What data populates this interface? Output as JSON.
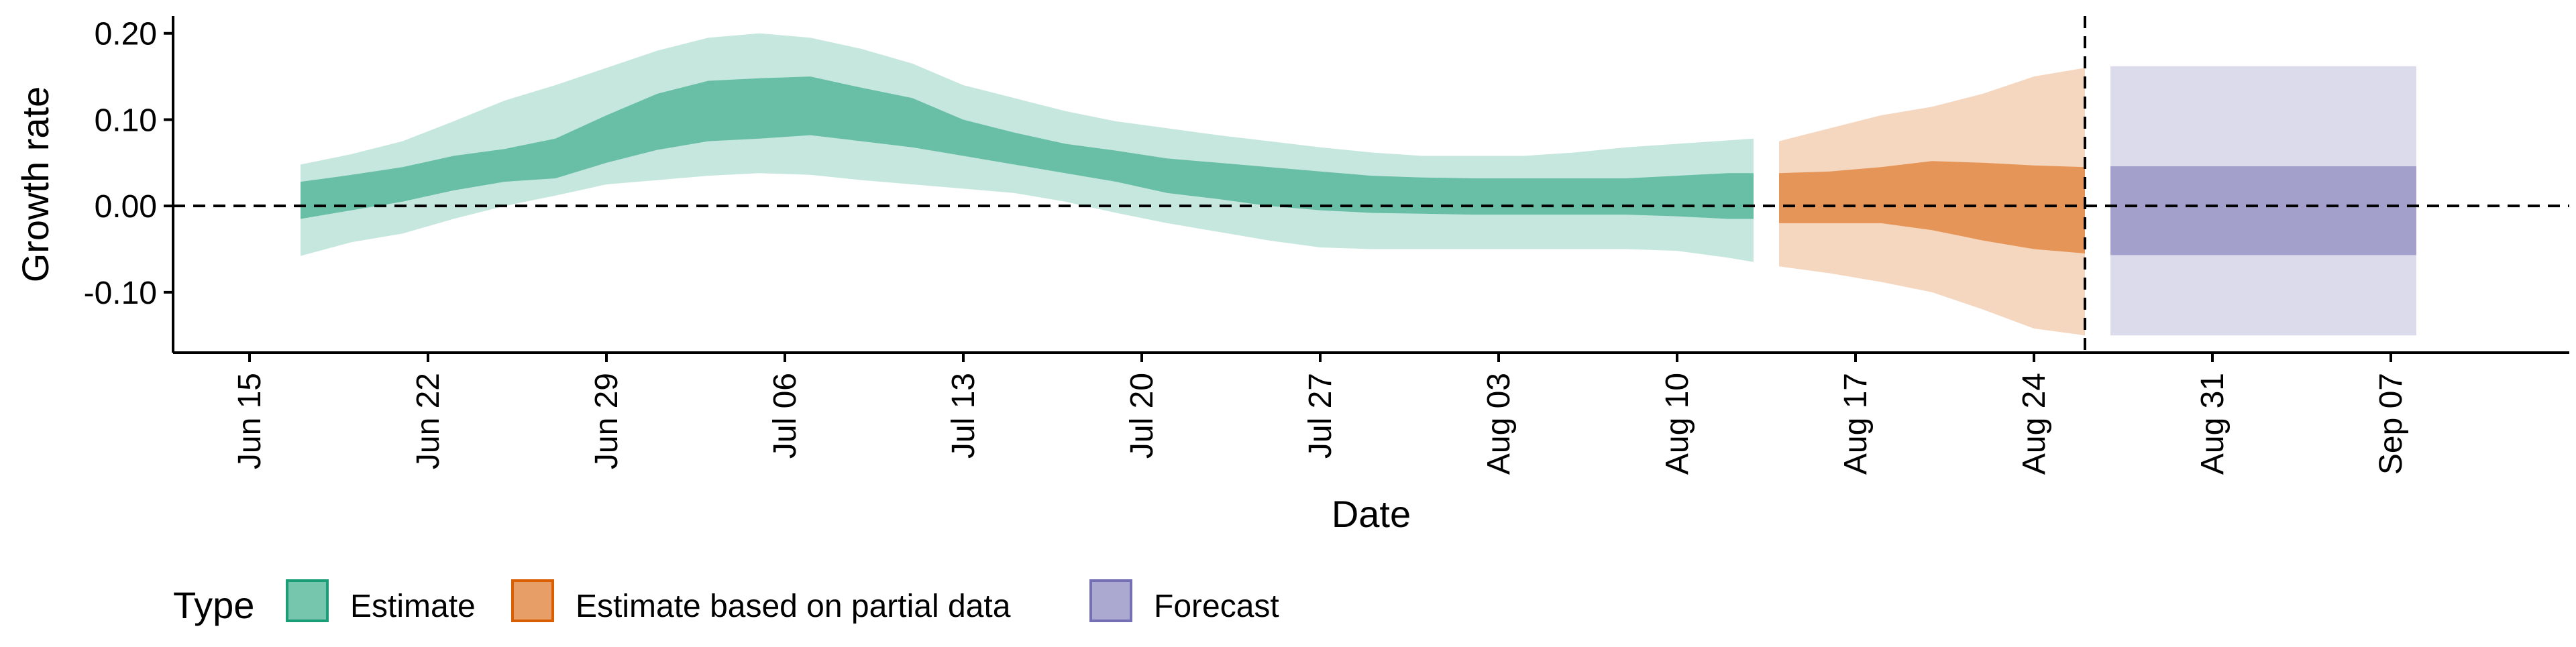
{
  "chart_data": {
    "type": "area",
    "xlabel": "Date",
    "ylabel": "Growth rate",
    "x_axis": {
      "type": "date",
      "range": [
        "2020-06-12",
        "2020-09-14"
      ],
      "ticks": [
        {
          "date": "2020-06-15",
          "label": "Jun 15"
        },
        {
          "date": "2020-06-22",
          "label": "Jun 22"
        },
        {
          "date": "2020-06-29",
          "label": "Jun 29"
        },
        {
          "date": "2020-07-06",
          "label": "Jul 06"
        },
        {
          "date": "2020-07-13",
          "label": "Jul 13"
        },
        {
          "date": "2020-07-20",
          "label": "Jul 20"
        },
        {
          "date": "2020-07-27",
          "label": "Jul 27"
        },
        {
          "date": "2020-08-03",
          "label": "Aug 03"
        },
        {
          "date": "2020-08-10",
          "label": "Aug 10"
        },
        {
          "date": "2020-08-17",
          "label": "Aug 17"
        },
        {
          "date": "2020-08-24",
          "label": "Aug 24"
        },
        {
          "date": "2020-08-31",
          "label": "Aug 31"
        },
        {
          "date": "2020-09-07",
          "label": "Sep 07"
        }
      ]
    },
    "y_axis": {
      "range": [
        -0.17,
        0.22
      ],
      "ticks": [
        {
          "value": 0.2,
          "label": "0.20"
        },
        {
          "value": 0.1,
          "label": "0.10"
        },
        {
          "value": 0.0,
          "label": "0.00"
        },
        {
          "value": -0.1,
          "label": "-0.10"
        }
      ]
    },
    "reference_lines": {
      "horizontal_y": 0.0,
      "vertical_x": "2020-08-26"
    },
    "grid": false,
    "legend": {
      "title": "Type",
      "position": "bottom-left"
    },
    "series": [
      {
        "name": "Estimate",
        "color": "#1b9e77",
        "points": [
          {
            "x": "2020-06-17",
            "l90": -0.058,
            "l50": -0.015,
            "u50": 0.028,
            "u90": 0.048
          },
          {
            "x": "2020-06-19",
            "l90": -0.042,
            "l50": -0.005,
            "u50": 0.036,
            "u90": 0.06
          },
          {
            "x": "2020-06-21",
            "l90": -0.032,
            "l50": 0.005,
            "u50": 0.045,
            "u90": 0.075
          },
          {
            "x": "2020-06-23",
            "l90": -0.015,
            "l50": 0.018,
            "u50": 0.058,
            "u90": 0.098
          },
          {
            "x": "2020-06-25",
            "l90": 0.0,
            "l50": 0.028,
            "u50": 0.066,
            "u90": 0.122
          },
          {
            "x": "2020-06-27",
            "l90": 0.012,
            "l50": 0.032,
            "u50": 0.078,
            "u90": 0.14
          },
          {
            "x": "2020-06-29",
            "l90": 0.025,
            "l50": 0.05,
            "u50": 0.105,
            "u90": 0.16
          },
          {
            "x": "2020-07-01",
            "l90": 0.03,
            "l50": 0.065,
            "u50": 0.13,
            "u90": 0.18
          },
          {
            "x": "2020-07-03",
            "l90": 0.035,
            "l50": 0.075,
            "u50": 0.145,
            "u90": 0.195
          },
          {
            "x": "2020-07-05",
            "l90": 0.038,
            "l50": 0.078,
            "u50": 0.148,
            "u90": 0.2
          },
          {
            "x": "2020-07-07",
            "l90": 0.036,
            "l50": 0.082,
            "u50": 0.15,
            "u90": 0.195
          },
          {
            "x": "2020-07-09",
            "l90": 0.03,
            "l50": 0.075,
            "u50": 0.137,
            "u90": 0.182
          },
          {
            "x": "2020-07-11",
            "l90": 0.025,
            "l50": 0.068,
            "u50": 0.125,
            "u90": 0.165
          },
          {
            "x": "2020-07-13",
            "l90": 0.02,
            "l50": 0.058,
            "u50": 0.1,
            "u90": 0.14
          },
          {
            "x": "2020-07-15",
            "l90": 0.015,
            "l50": 0.048,
            "u50": 0.085,
            "u90": 0.125
          },
          {
            "x": "2020-07-17",
            "l90": 0.005,
            "l50": 0.038,
            "u50": 0.072,
            "u90": 0.11
          },
          {
            "x": "2020-07-19",
            "l90": -0.008,
            "l50": 0.028,
            "u50": 0.064,
            "u90": 0.098
          },
          {
            "x": "2020-07-21",
            "l90": -0.02,
            "l50": 0.015,
            "u50": 0.055,
            "u90": 0.09
          },
          {
            "x": "2020-07-23",
            "l90": -0.03,
            "l50": 0.008,
            "u50": 0.05,
            "u90": 0.082
          },
          {
            "x": "2020-07-25",
            "l90": -0.04,
            "l50": 0.0,
            "u50": 0.045,
            "u90": 0.075
          },
          {
            "x": "2020-07-27",
            "l90": -0.048,
            "l50": -0.005,
            "u50": 0.04,
            "u90": 0.068
          },
          {
            "x": "2020-07-29",
            "l90": -0.05,
            "l50": -0.008,
            "u50": 0.035,
            "u90": 0.062
          },
          {
            "x": "2020-07-31",
            "l90": -0.05,
            "l50": -0.009,
            "u50": 0.033,
            "u90": 0.058
          },
          {
            "x": "2020-08-02",
            "l90": -0.05,
            "l50": -0.01,
            "u50": 0.032,
            "u90": 0.058
          },
          {
            "x": "2020-08-04",
            "l90": -0.05,
            "l50": -0.01,
            "u50": 0.032,
            "u90": 0.058
          },
          {
            "x": "2020-08-06",
            "l90": -0.05,
            "l50": -0.01,
            "u50": 0.032,
            "u90": 0.062
          },
          {
            "x": "2020-08-08",
            "l90": -0.05,
            "l50": -0.01,
            "u50": 0.032,
            "u90": 0.068
          },
          {
            "x": "2020-08-10",
            "l90": -0.052,
            "l50": -0.012,
            "u50": 0.035,
            "u90": 0.072
          },
          {
            "x": "2020-08-12",
            "l90": -0.06,
            "l50": -0.015,
            "u50": 0.038,
            "u90": 0.076
          },
          {
            "x": "2020-08-13",
            "l90": -0.065,
            "l50": -0.015,
            "u50": 0.038,
            "u90": 0.078
          }
        ]
      },
      {
        "name": "Estimate based on partial data",
        "color": "#d95f02",
        "points": [
          {
            "x": "2020-08-14",
            "l90": -0.07,
            "l50": -0.02,
            "u50": 0.038,
            "u90": 0.075
          },
          {
            "x": "2020-08-16",
            "l90": -0.078,
            "l50": -0.02,
            "u50": 0.04,
            "u90": 0.09
          },
          {
            "x": "2020-08-18",
            "l90": -0.088,
            "l50": -0.02,
            "u50": 0.045,
            "u90": 0.105
          },
          {
            "x": "2020-08-20",
            "l90": -0.1,
            "l50": -0.028,
            "u50": 0.052,
            "u90": 0.115
          },
          {
            "x": "2020-08-22",
            "l90": -0.12,
            "l50": -0.04,
            "u50": 0.05,
            "u90": 0.13
          },
          {
            "x": "2020-08-24",
            "l90": -0.142,
            "l50": -0.05,
            "u50": 0.047,
            "u90": 0.15
          },
          {
            "x": "2020-08-26",
            "l90": -0.15,
            "l50": -0.055,
            "u50": 0.045,
            "u90": 0.16
          }
        ]
      },
      {
        "name": "Forecast",
        "color": "#7570b3",
        "points": [
          {
            "x": "2020-08-27",
            "l90": -0.15,
            "l50": -0.057,
            "u50": 0.046,
            "u90": 0.162
          },
          {
            "x": "2020-09-08",
            "l90": -0.15,
            "l50": -0.057,
            "u50": 0.046,
            "u90": 0.162
          }
        ]
      }
    ]
  }
}
